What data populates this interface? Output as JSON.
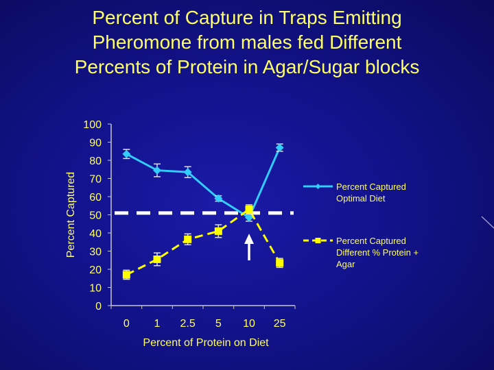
{
  "title_lines": [
    "Percent of Capture in Traps Emitting",
    "Pheromone from males fed Different",
    "Percents of Protein in Agar/Sugar blocks"
  ],
  "chart_data": {
    "type": "line",
    "title": "Percent of Capture in Traps Emitting Pheromone from males fed Different Percents of Protein in Agar/Sugar blocks",
    "xlabel": "Percent of Protein on Diet",
    "ylabel": "Percent Captured",
    "categories": [
      "0",
      "1",
      "2.5",
      "5",
      "10",
      "25"
    ],
    "ylim": [
      0,
      100
    ],
    "yticks": [
      0,
      10,
      20,
      30,
      40,
      50,
      60,
      70,
      80,
      90,
      100
    ],
    "series": [
      {
        "name": "Percent Captured Optimal Diet",
        "legend_lines": [
          "Percent Captured",
          "Optimal Diet"
        ],
        "marker": "diamond",
        "color": "#33ccff",
        "line_style": "solid",
        "values": [
          83.5,
          74.5,
          73.5,
          59,
          48.5,
          87
        ],
        "errors": [
          2.5,
          3.5,
          3,
          1.5,
          2,
          2
        ]
      },
      {
        "name": "Percent Captured Different % Protein + Agar",
        "legend_lines": [
          "Percent Captured",
          "Different % Protein +",
          "Agar"
        ],
        "marker": "square",
        "color": "#ffff00",
        "line_style": "dashed",
        "values": [
          17,
          25.5,
          36.5,
          41,
          53,
          23.5
        ],
        "errors": [
          2.5,
          3.5,
          3,
          3.5,
          2.5,
          2.5
        ]
      }
    ],
    "reference_line": {
      "y": 51,
      "style": "dashed",
      "color": "#ffffff"
    },
    "annotation_arrow": {
      "category": "10",
      "direction": "up",
      "color": "#ffffff"
    }
  }
}
